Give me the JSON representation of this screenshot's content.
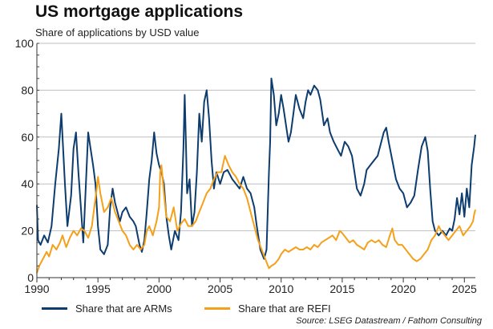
{
  "chart_data": {
    "type": "line",
    "title": "US mortgage applications",
    "subtitle": "Share of applications by USD value",
    "source": "Source: LSEG Datastream / Fathom Consulting",
    "xlabel": "",
    "ylabel": "",
    "xlim": [
      1990,
      2025.9
    ],
    "ylim": [
      0,
      100
    ],
    "x_ticks": [
      1990,
      1995,
      2000,
      2005,
      2010,
      2015,
      2020,
      2025
    ],
    "y_ticks": [
      0,
      20,
      40,
      60,
      80,
      100
    ],
    "grid": "horizontal",
    "legend_position": "bottom",
    "series": [
      {
        "name": "Share that are ARMs",
        "color": "#0d3c6e",
        "points": [
          [
            1990.0,
            31
          ],
          [
            1990.1,
            16
          ],
          [
            1990.3,
            14
          ],
          [
            1990.6,
            18
          ],
          [
            1990.9,
            15
          ],
          [
            1991.2,
            22
          ],
          [
            1991.5,
            40
          ],
          [
            1991.8,
            55
          ],
          [
            1992.0,
            70
          ],
          [
            1992.1,
            60
          ],
          [
            1992.3,
            40
          ],
          [
            1992.5,
            22
          ],
          [
            1992.8,
            35
          ],
          [
            1993.0,
            55
          ],
          [
            1993.2,
            62
          ],
          [
            1993.4,
            45
          ],
          [
            1993.6,
            30
          ],
          [
            1993.8,
            15
          ],
          [
            1994.0,
            38
          ],
          [
            1994.2,
            62
          ],
          [
            1994.4,
            55
          ],
          [
            1994.6,
            48
          ],
          [
            1994.8,
            40
          ],
          [
            1995.0,
            22
          ],
          [
            1995.2,
            12
          ],
          [
            1995.5,
            10
          ],
          [
            1995.8,
            14
          ],
          [
            1996.0,
            30
          ],
          [
            1996.2,
            38
          ],
          [
            1996.4,
            32
          ],
          [
            1996.6,
            28
          ],
          [
            1996.8,
            24
          ],
          [
            1997.0,
            28
          ],
          [
            1997.3,
            30
          ],
          [
            1997.6,
            26
          ],
          [
            1997.9,
            24
          ],
          [
            1998.1,
            22
          ],
          [
            1998.4,
            14
          ],
          [
            1998.6,
            11
          ],
          [
            1998.8,
            16
          ],
          [
            1999.0,
            28
          ],
          [
            1999.2,
            42
          ],
          [
            1999.4,
            50
          ],
          [
            1999.6,
            62
          ],
          [
            1999.8,
            53
          ],
          [
            2000.0,
            48
          ],
          [
            2000.2,
            45
          ],
          [
            2000.4,
            40
          ],
          [
            2000.6,
            26
          ],
          [
            2000.8,
            18
          ],
          [
            2001.0,
            12
          ],
          [
            2001.3,
            20
          ],
          [
            2001.6,
            16
          ],
          [
            2001.8,
            28
          ],
          [
            2002.0,
            55
          ],
          [
            2002.1,
            78
          ],
          [
            2002.2,
            58
          ],
          [
            2002.3,
            36
          ],
          [
            2002.5,
            42
          ],
          [
            2002.7,
            22
          ],
          [
            2002.9,
            28
          ],
          [
            2003.1,
            45
          ],
          [
            2003.3,
            70
          ],
          [
            2003.5,
            58
          ],
          [
            2003.7,
            75
          ],
          [
            2003.9,
            80
          ],
          [
            2004.1,
            68
          ],
          [
            2004.3,
            50
          ],
          [
            2004.5,
            38
          ],
          [
            2004.7,
            45
          ],
          [
            2005.0,
            40
          ],
          [
            2005.3,
            45
          ],
          [
            2005.6,
            46
          ],
          [
            2006.0,
            42
          ],
          [
            2006.3,
            40
          ],
          [
            2006.6,
            38
          ],
          [
            2006.9,
            43
          ],
          [
            2007.2,
            38
          ],
          [
            2007.5,
            36
          ],
          [
            2007.8,
            30
          ],
          [
            2008.0,
            22
          ],
          [
            2008.3,
            12
          ],
          [
            2008.6,
            8
          ],
          [
            2008.8,
            12
          ],
          [
            2009.0,
            45
          ],
          [
            2009.1,
            58
          ],
          [
            2009.2,
            85
          ],
          [
            2009.4,
            78
          ],
          [
            2009.6,
            65
          ],
          [
            2009.8,
            70
          ],
          [
            2010.0,
            78
          ],
          [
            2010.2,
            72
          ],
          [
            2010.4,
            65
          ],
          [
            2010.6,
            58
          ],
          [
            2010.8,
            62
          ],
          [
            2011.0,
            70
          ],
          [
            2011.2,
            78
          ],
          [
            2011.5,
            72
          ],
          [
            2011.8,
            68
          ],
          [
            2012.0,
            75
          ],
          [
            2012.2,
            80
          ],
          [
            2012.4,
            78
          ],
          [
            2012.7,
            82
          ],
          [
            2013.0,
            80
          ],
          [
            2013.2,
            76
          ],
          [
            2013.5,
            65
          ],
          [
            2013.8,
            68
          ],
          [
            2014.0,
            62
          ],
          [
            2014.3,
            58
          ],
          [
            2014.6,
            55
          ],
          [
            2014.9,
            52
          ],
          [
            2015.2,
            58
          ],
          [
            2015.5,
            56
          ],
          [
            2015.8,
            52
          ],
          [
            2016.0,
            45
          ],
          [
            2016.2,
            38
          ],
          [
            2016.5,
            35
          ],
          [
            2016.8,
            40
          ],
          [
            2017.0,
            46
          ],
          [
            2017.3,
            48
          ],
          [
            2017.6,
            50
          ],
          [
            2017.9,
            52
          ],
          [
            2018.2,
            58
          ],
          [
            2018.4,
            62
          ],
          [
            2018.6,
            64
          ],
          [
            2018.8,
            58
          ],
          [
            2019.1,
            50
          ],
          [
            2019.4,
            42
          ],
          [
            2019.7,
            38
          ],
          [
            2020.0,
            36
          ],
          [
            2020.3,
            30
          ],
          [
            2020.6,
            32
          ],
          [
            2020.9,
            35
          ],
          [
            2021.2,
            46
          ],
          [
            2021.5,
            56
          ],
          [
            2021.8,
            60
          ],
          [
            2022.0,
            54
          ],
          [
            2022.2,
            38
          ],
          [
            2022.4,
            24
          ],
          [
            2022.6,
            20
          ],
          [
            2022.9,
            18
          ],
          [
            2023.2,
            20
          ],
          [
            2023.5,
            18
          ],
          [
            2023.8,
            21
          ],
          [
            2024.0,
            20
          ],
          [
            2024.2,
            25
          ],
          [
            2024.4,
            34
          ],
          [
            2024.6,
            27
          ],
          [
            2024.8,
            36
          ],
          [
            2025.0,
            26
          ],
          [
            2025.2,
            38
          ],
          [
            2025.4,
            30
          ],
          [
            2025.6,
            48
          ],
          [
            2025.8,
            56
          ],
          [
            2025.9,
            61
          ]
        ]
      },
      {
        "name": "Share that are REFI",
        "color": "#f5a01a",
        "points": [
          [
            1990.0,
            2
          ],
          [
            1990.2,
            5
          ],
          [
            1990.5,
            8
          ],
          [
            1990.8,
            11
          ],
          [
            1991.0,
            9
          ],
          [
            1991.3,
            14
          ],
          [
            1991.6,
            12
          ],
          [
            1991.9,
            15
          ],
          [
            1992.1,
            18
          ],
          [
            1992.4,
            13
          ],
          [
            1992.7,
            17
          ],
          [
            1993.0,
            20
          ],
          [
            1993.3,
            18
          ],
          [
            1993.6,
            21
          ],
          [
            1993.9,
            20
          ],
          [
            1994.2,
            17
          ],
          [
            1994.5,
            22
          ],
          [
            1994.7,
            30
          ],
          [
            1994.9,
            38
          ],
          [
            1995.0,
            43
          ],
          [
            1995.2,
            36
          ],
          [
            1995.5,
            28
          ],
          [
            1995.8,
            30
          ],
          [
            1996.1,
            34
          ],
          [
            1996.4,
            28
          ],
          [
            1996.7,
            24
          ],
          [
            1997.0,
            20
          ],
          [
            1997.3,
            18
          ],
          [
            1997.6,
            14
          ],
          [
            1997.9,
            12
          ],
          [
            1998.2,
            14
          ],
          [
            1998.5,
            12
          ],
          [
            1998.8,
            14
          ],
          [
            1999.0,
            20
          ],
          [
            1999.2,
            22
          ],
          [
            1999.5,
            18
          ],
          [
            1999.8,
            24
          ],
          [
            2000.0,
            30
          ],
          [
            2000.1,
            45
          ],
          [
            2000.2,
            48
          ],
          [
            2000.4,
            36
          ],
          [
            2000.6,
            26
          ],
          [
            2000.9,
            24
          ],
          [
            2001.2,
            30
          ],
          [
            2001.5,
            20
          ],
          [
            2001.8,
            23
          ],
          [
            2002.1,
            25
          ],
          [
            2002.4,
            22
          ],
          [
            2002.7,
            22
          ],
          [
            2003.0,
            24
          ],
          [
            2003.3,
            28
          ],
          [
            2003.6,
            32
          ],
          [
            2003.9,
            36
          ],
          [
            2004.2,
            38
          ],
          [
            2004.5,
            42
          ],
          [
            2004.8,
            45
          ],
          [
            2005.1,
            45
          ],
          [
            2005.4,
            52
          ],
          [
            2005.7,
            48
          ],
          [
            2006.0,
            45
          ],
          [
            2006.3,
            43
          ],
          [
            2006.6,
            40
          ],
          [
            2006.9,
            38
          ],
          [
            2007.2,
            34
          ],
          [
            2007.5,
            28
          ],
          [
            2007.8,
            22
          ],
          [
            2008.1,
            16
          ],
          [
            2008.4,
            12
          ],
          [
            2008.7,
            8
          ],
          [
            2009.0,
            4
          ],
          [
            2009.2,
            5
          ],
          [
            2009.5,
            6
          ],
          [
            2009.8,
            8
          ],
          [
            2010.0,
            10
          ],
          [
            2010.3,
            12
          ],
          [
            2010.6,
            11
          ],
          [
            2010.9,
            12
          ],
          [
            2011.2,
            13
          ],
          [
            2011.5,
            12
          ],
          [
            2011.8,
            12
          ],
          [
            2012.1,
            13
          ],
          [
            2012.4,
            12
          ],
          [
            2012.7,
            14
          ],
          [
            2013.0,
            13
          ],
          [
            2013.3,
            15
          ],
          [
            2013.6,
            16
          ],
          [
            2013.9,
            17
          ],
          [
            2014.2,
            18
          ],
          [
            2014.5,
            16
          ],
          [
            2014.8,
            20
          ],
          [
            2015.0,
            19
          ],
          [
            2015.3,
            17
          ],
          [
            2015.6,
            15
          ],
          [
            2015.9,
            16
          ],
          [
            2016.2,
            14
          ],
          [
            2016.5,
            13
          ],
          [
            2016.8,
            12
          ],
          [
            2017.1,
            15
          ],
          [
            2017.4,
            16
          ],
          [
            2017.7,
            15
          ],
          [
            2018.0,
            16
          ],
          [
            2018.3,
            14
          ],
          [
            2018.6,
            13
          ],
          [
            2018.9,
            18
          ],
          [
            2019.1,
            21
          ],
          [
            2019.3,
            16
          ],
          [
            2019.6,
            14
          ],
          [
            2019.9,
            14
          ],
          [
            2020.2,
            12
          ],
          [
            2020.5,
            10
          ],
          [
            2020.8,
            8
          ],
          [
            2021.1,
            7
          ],
          [
            2021.4,
            8
          ],
          [
            2021.7,
            10
          ],
          [
            2022.0,
            12
          ],
          [
            2022.3,
            16
          ],
          [
            2022.6,
            18
          ],
          [
            2022.9,
            22
          ],
          [
            2023.1,
            20
          ],
          [
            2023.4,
            18
          ],
          [
            2023.7,
            16
          ],
          [
            2024.0,
            18
          ],
          [
            2024.3,
            20
          ],
          [
            2024.6,
            22
          ],
          [
            2024.9,
            18
          ],
          [
            2025.2,
            20
          ],
          [
            2025.5,
            22
          ],
          [
            2025.7,
            24
          ],
          [
            2025.8,
            27
          ],
          [
            2025.9,
            29
          ]
        ]
      }
    ]
  }
}
